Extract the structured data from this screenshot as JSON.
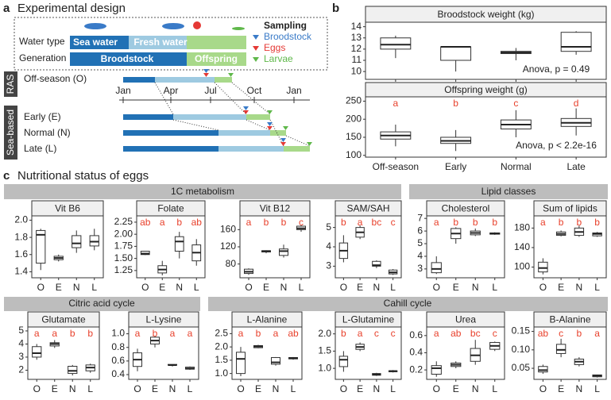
{
  "panel_a": {
    "label": "a",
    "title": "Experimental design",
    "water_type": "Water type",
    "sea_water": "Sea water",
    "fresh_water": "Fresh water",
    "generation": "Generation",
    "broodstock": "Broodstock",
    "offspring": "Offspring",
    "sampling": "Sampling",
    "sampling_items": [
      "Broodstock",
      "Eggs",
      "Larvae"
    ],
    "ras": "RAS",
    "sea_based": "Sea-based",
    "groups": [
      "Off-season (O)",
      "Early (E)",
      "Normal (N)",
      "Late (L)"
    ],
    "months": [
      "Jan",
      "Apr",
      "Jul",
      "Oct",
      "Jan"
    ]
  },
  "panel_b_label": "b",
  "panel_c": {
    "label": "c",
    "title": "Nutritional status of eggs",
    "sections": [
      "1C metabolism",
      "Lipid classes",
      "Citric acid cycle",
      "Cahill cycle"
    ]
  },
  "chart_data": [
    {
      "type": "box",
      "title": "Broodstock weight (kg)",
      "categories": [
        "Off-season",
        "Early",
        "Normal",
        "Late"
      ],
      "boxes": [
        [
          11.2,
          12,
          12.4,
          13,
          13.2
        ],
        [
          10,
          11,
          12.2,
          12.2,
          12.2
        ],
        [
          11,
          11.6,
          11.7,
          11.8,
          12.1
        ],
        [
          11.5,
          11.8,
          12.2,
          13.5,
          13.6
        ]
      ],
      "annotation": "Anova, p = 0.49",
      "ylim": [
        9.3,
        14.4
      ],
      "yticks": [
        10,
        11,
        12,
        13,
        14
      ]
    },
    {
      "type": "box",
      "title": "Offspring weight (g)",
      "categories": [
        "Off-season",
        "Early",
        "Normal",
        "Late"
      ],
      "boxes": [
        [
          125,
          145,
          155,
          165,
          185
        ],
        [
          112,
          133,
          140,
          150,
          170
        ],
        [
          150,
          173,
          185,
          198,
          225
        ],
        [
          155,
          180,
          190,
          202,
          230
        ]
      ],
      "letters": [
        "a",
        "b",
        "c",
        "d"
      ],
      "annotation": "Anova, p < 2.2e-16",
      "ylim": [
        95,
        262
      ],
      "yticks": [
        100,
        150,
        200,
        250
      ]
    },
    {
      "type": "box",
      "title": "Vit B6",
      "categories": [
        "O",
        "E",
        "N",
        "L"
      ],
      "boxes": [
        [
          1.42,
          1.5,
          1.83,
          1.88,
          1.9
        ],
        [
          1.52,
          1.54,
          1.56,
          1.58,
          1.6
        ],
        [
          1.62,
          1.68,
          1.73,
          1.82,
          1.88
        ],
        [
          1.65,
          1.7,
          1.75,
          1.82,
          1.9
        ]
      ],
      "ylim": [
        1.33,
        2.05
      ],
      "yticks": [
        1.4,
        1.6,
        1.8,
        {
          "value": 2,
          "label": "2.0"
        }
      ]
    },
    {
      "type": "box",
      "title": "Folate",
      "categories": [
        "O",
        "E",
        "N",
        "L"
      ],
      "boxes": [
        [
          1.57,
          1.58,
          1.6,
          1.65,
          1.65
        ],
        [
          1.15,
          1.2,
          1.27,
          1.35,
          1.45
        ],
        [
          1.5,
          1.65,
          1.85,
          1.95,
          2.05
        ],
        [
          1.35,
          1.45,
          1.62,
          1.78,
          1.9
        ]
      ],
      "letters": [
        "ab",
        "a",
        "b",
        "ab"
      ],
      "ylim": [
        1.1,
        2.38
      ],
      "yticks": [
        1.25,
        {
          "value": 1.5,
          "label": "1.50"
        },
        1.75,
        {
          "value": 2,
          "label": "2.00"
        },
        2.25
      ]
    },
    {
      "type": "box",
      "title": "Vit B12",
      "categories": [
        "O",
        "E",
        "N",
        "L"
      ],
      "boxes": [
        [
          55,
          58,
          62,
          68,
          70
        ],
        [
          105,
          108,
          110,
          111,
          112
        ],
        [
          95,
          100,
          110,
          115,
          125
        ],
        [
          155,
          160,
          163,
          168,
          170
        ]
      ],
      "letters": [
        "a",
        "b",
        "b",
        "c"
      ],
      "ylim": [
        48,
        192
      ],
      "yticks": [
        80,
        120,
        160
      ]
    },
    {
      "type": "box",
      "title": "SAM/SAH",
      "categories": [
        "O",
        "E",
        "N",
        "L"
      ],
      "boxes": [
        [
          3.2,
          3.4,
          3.8,
          4.2,
          4.6
        ],
        [
          4.4,
          4.5,
          4.75,
          5,
          5.1
        ],
        [
          2.9,
          3,
          3.05,
          3.25,
          3.3
        ],
        [
          2.55,
          2.6,
          2.68,
          2.8,
          2.85
        ]
      ],
      "letters": [
        "b",
        "a",
        "bc",
        "c"
      ],
      "ylim": [
        2.4,
        5.6
      ],
      "yticks": [
        3,
        4,
        5
      ]
    },
    {
      "type": "box",
      "title": "Cholesterol",
      "categories": [
        "O",
        "E",
        "N",
        "L"
      ],
      "boxes": [
        [
          2.6,
          2.7,
          3,
          3.5,
          4
        ],
        [
          5,
          5.4,
          5.8,
          6.2,
          6.3
        ],
        [
          5.6,
          5.7,
          5.85,
          6,
          6.2
        ],
        [
          5.7,
          5.75,
          5.8,
          5.85,
          5.9
        ]
      ],
      "letters": [
        "a",
        "b",
        "b",
        "b"
      ],
      "ylim": [
        2.3,
        7.2
      ],
      "yticks": [
        3,
        4,
        5,
        6,
        7
      ]
    },
    {
      "type": "box",
      "title": "Sum of lipids",
      "categories": [
        "O",
        "E",
        "N",
        "L"
      ],
      "boxes": [
        [
          85,
          90,
          98,
          110,
          118
        ],
        [
          163,
          165,
          168,
          172,
          175
        ],
        [
          162,
          165,
          172,
          180,
          185
        ],
        [
          162,
          164,
          168,
          170,
          172
        ]
      ],
      "letters": [
        "a",
        "b",
        "b",
        "b"
      ],
      "ylim": [
        78,
        205
      ],
      "yticks": [
        100,
        140,
        180
      ]
    },
    {
      "type": "box",
      "title": "Glutamate",
      "categories": [
        "O",
        "E",
        "N",
        "L"
      ],
      "boxes": [
        [
          2.8,
          3,
          3.3,
          3.8,
          4
        ],
        [
          3.7,
          3.85,
          4,
          4.1,
          4.3
        ],
        [
          1.6,
          1.75,
          1.95,
          2.3,
          2.4
        ],
        [
          1.8,
          1.95,
          2.2,
          2.4,
          2.5
        ]
      ],
      "letters": [
        "a",
        "a",
        "b",
        "b"
      ],
      "ylim": [
        1.3,
        5.3
      ],
      "yticks": [
        2,
        3,
        4,
        5
      ]
    },
    {
      "type": "box",
      "title": "L-Lysine",
      "categories": [
        "O",
        "E",
        "N",
        "L"
      ],
      "boxes": [
        [
          0.45,
          0.52,
          0.62,
          0.72,
          0.78
        ],
        [
          0.8,
          0.85,
          0.9,
          0.95,
          0.97
        ],
        [
          0.52,
          0.54,
          0.54,
          0.55,
          0.55
        ],
        [
          0.47,
          0.48,
          0.49,
          0.51,
          0.52
        ]
      ],
      "letters": [
        "a",
        "b",
        "a",
        "a"
      ],
      "ylim": [
        0.33,
        1.1
      ],
      "yticks": [
        0.4,
        0.6,
        0.8,
        {
          "value": 1,
          "label": "1.0"
        }
      ]
    },
    {
      "type": "box",
      "title": "L-Alanine",
      "categories": [
        "O",
        "E",
        "N",
        "L"
      ],
      "boxes": [
        [
          0.9,
          1,
          1.55,
          1.8,
          2
        ],
        [
          1.95,
          1.97,
          2.02,
          2.05,
          2.08
        ],
        [
          1.3,
          1.35,
          1.42,
          1.6,
          1.62
        ],
        [
          1.52,
          1.55,
          1.58,
          1.6,
          1.62
        ]
      ],
      "letters": [
        "a",
        "b",
        "a",
        "ab"
      ],
      "ylim": [
        0.78,
        2.75
      ],
      "yticks": [
        {
          "value": 1,
          "label": "1.0"
        },
        1.5,
        {
          "value": 2,
          "label": "2.0"
        },
        2.5
      ]
    },
    {
      "type": "box",
      "title": "L-Glutamine",
      "categories": [
        "O",
        "E",
        "N",
        "L"
      ],
      "boxes": [
        [
          0.9,
          1.05,
          1.25,
          1.35,
          1.5
        ],
        [
          1.5,
          1.55,
          1.62,
          1.7,
          1.75
        ],
        [
          0.78,
          0.8,
          0.82,
          0.85,
          0.87
        ],
        [
          0.88,
          0.9,
          0.92,
          0.93,
          0.95
        ]
      ],
      "letters": [
        "b",
        "a",
        "c",
        "c"
      ],
      "ylim": [
        0.68,
        2.2
      ],
      "yticks": [
        {
          "value": 1,
          "label": "1.0"
        },
        1.5,
        {
          "value": 2,
          "label": "2.0"
        }
      ]
    },
    {
      "type": "box",
      "title": "Urea",
      "categories": [
        "O",
        "E",
        "N",
        "L"
      ],
      "boxes": [
        [
          0.12,
          0.15,
          0.22,
          0.25,
          0.3
        ],
        [
          0.22,
          0.24,
          0.26,
          0.28,
          0.3
        ],
        [
          0.26,
          0.3,
          0.37,
          0.45,
          0.55
        ],
        [
          0.42,
          0.44,
          0.48,
          0.52,
          0.53
        ]
      ],
      "letters": [
        "a",
        "ab",
        "bc",
        "c"
      ],
      "ylim": [
        0.09,
        0.7
      ],
      "yticks": [
        0.2,
        0.4,
        0.6
      ]
    },
    {
      "type": "box",
      "title": "B-Alanine",
      "categories": [
        "O",
        "E",
        "N",
        "L"
      ],
      "boxes": [
        [
          0.035,
          0.04,
          0.045,
          0.055,
          0.06
        ],
        [
          0.08,
          0.09,
          0.1,
          0.115,
          0.13
        ],
        [
          0.055,
          0.06,
          0.068,
          0.075,
          0.08
        ],
        [
          0.025,
          0.027,
          0.03,
          0.032,
          0.033
        ]
      ],
      "letters": [
        "ab",
        "c",
        "b",
        "a"
      ],
      "ylim": [
        0.02,
        0.162
      ],
      "yticks": [
        0.05,
        {
          "value": 0.1,
          "label": "0.10"
        },
        0.15
      ]
    }
  ]
}
